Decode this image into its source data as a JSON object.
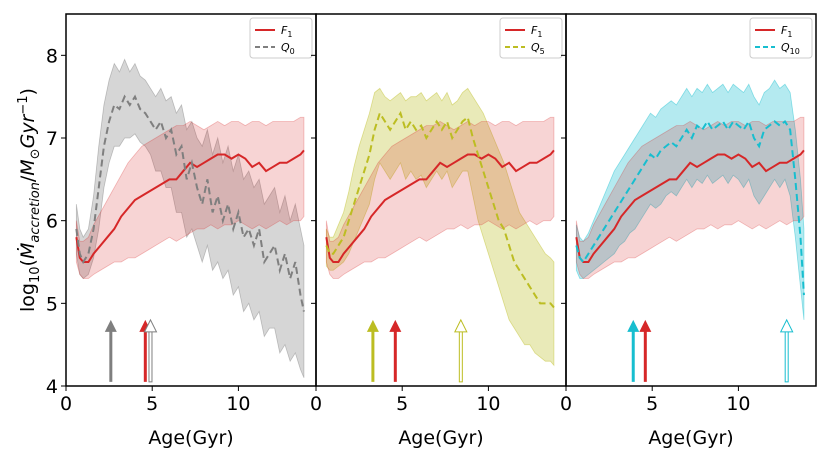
{
  "chart_data": {
    "type": "line",
    "ylabel": "log10(Ṁaccretion/M⊙Gyr⁻¹)",
    "xlim": [
      0,
      14.5
    ],
    "ylim": [
      4,
      8.5
    ],
    "xticks": [
      0,
      5,
      10
    ],
    "yticks": [
      4,
      5,
      6,
      7,
      8
    ],
    "reference": {
      "name": "F1",
      "color": "#d62728",
      "x": [
        0.6,
        0.8,
        1.0,
        1.3,
        1.6,
        2.0,
        2.4,
        2.8,
        3.2,
        3.6,
        4.0,
        4.4,
        4.8,
        5.2,
        5.6,
        6.0,
        6.4,
        6.8,
        7.2,
        7.6,
        8.0,
        8.4,
        8.8,
        9.2,
        9.6,
        10.0,
        10.4,
        10.8,
        11.2,
        11.6,
        12.0,
        12.4,
        12.8,
        13.2,
        13.6,
        13.8
      ],
      "y": [
        5.8,
        5.55,
        5.5,
        5.5,
        5.6,
        5.7,
        5.8,
        5.9,
        6.05,
        6.15,
        6.25,
        6.3,
        6.35,
        6.4,
        6.45,
        6.5,
        6.5,
        6.6,
        6.7,
        6.65,
        6.7,
        6.75,
        6.8,
        6.8,
        6.75,
        6.8,
        6.75,
        6.65,
        6.7,
        6.6,
        6.65,
        6.7,
        6.7,
        6.75,
        6.8,
        6.85
      ],
      "lower": [
        5.5,
        5.35,
        5.3,
        5.3,
        5.35,
        5.4,
        5.45,
        5.5,
        5.5,
        5.55,
        5.55,
        5.6,
        5.65,
        5.7,
        5.75,
        5.8,
        5.75,
        5.8,
        5.85,
        5.9,
        5.9,
        5.95,
        5.9,
        5.95,
        5.95,
        6.0,
        5.95,
        5.9,
        5.95,
        5.9,
        5.95,
        6.0,
        5.95,
        6.0,
        6.0,
        6.05
      ],
      "upper": [
        6.0,
        5.75,
        5.75,
        5.8,
        5.95,
        6.1,
        6.25,
        6.4,
        6.55,
        6.7,
        6.8,
        6.9,
        6.95,
        7.0,
        7.05,
        7.1,
        7.15,
        7.15,
        7.2,
        7.15,
        7.1,
        7.15,
        7.2,
        7.15,
        7.2,
        7.2,
        7.15,
        7.2,
        7.2,
        7.15,
        7.2,
        7.2,
        7.2,
        7.2,
        7.25,
        7.25
      ]
    },
    "panels": [
      {
        "xlabel": "Age(Gyr)",
        "legend": [
          "F1",
          "Q0"
        ],
        "series": {
          "name": "Q0",
          "color": "#7f7f7f",
          "x": [
            0.6,
            0.8,
            1.0,
            1.3,
            1.6,
            1.9,
            2.2,
            2.5,
            2.8,
            3.1,
            3.4,
            3.7,
            4.0,
            4.3,
            4.6,
            4.9,
            5.2,
            5.5,
            5.8,
            6.1,
            6.4,
            6.7,
            7.0,
            7.3,
            7.6,
            7.9,
            8.2,
            8.5,
            8.8,
            9.1,
            9.4,
            9.7,
            10.0,
            10.3,
            10.6,
            10.9,
            11.2,
            11.5,
            11.8,
            12.1,
            12.4,
            12.7,
            13.0,
            13.3,
            13.6,
            13.8
          ],
          "y": [
            5.9,
            5.6,
            5.5,
            5.6,
            5.9,
            6.4,
            6.9,
            7.2,
            7.4,
            7.35,
            7.5,
            7.4,
            7.5,
            7.35,
            7.3,
            7.2,
            7.1,
            7.2,
            7.0,
            7.1,
            6.8,
            6.9,
            6.5,
            6.7,
            6.4,
            6.2,
            6.5,
            6.1,
            6.3,
            6.0,
            6.2,
            5.9,
            6.1,
            5.8,
            5.9,
            5.7,
            5.9,
            5.5,
            5.6,
            5.7,
            5.4,
            5.6,
            5.3,
            5.5,
            5.1,
            4.9
          ],
          "lower": [
            5.6,
            5.35,
            5.3,
            5.35,
            5.55,
            5.9,
            6.4,
            6.7,
            6.9,
            6.9,
            7.0,
            7.0,
            7.05,
            6.95,
            6.9,
            6.8,
            6.6,
            6.6,
            6.4,
            6.4,
            6.1,
            6.1,
            5.8,
            5.9,
            5.7,
            5.5,
            5.7,
            5.4,
            5.5,
            5.3,
            5.4,
            5.1,
            5.2,
            4.9,
            5.0,
            4.8,
            4.9,
            4.6,
            4.7,
            4.7,
            4.4,
            4.5,
            4.3,
            4.4,
            4.2,
            4.1
          ],
          "upper": [
            6.2,
            5.9,
            5.8,
            5.9,
            6.3,
            6.9,
            7.4,
            7.7,
            7.9,
            7.8,
            7.95,
            7.8,
            7.9,
            7.75,
            7.7,
            7.6,
            7.5,
            7.6,
            7.45,
            7.5,
            7.3,
            7.4,
            7.1,
            7.2,
            7.0,
            6.9,
            7.1,
            6.8,
            7.0,
            6.7,
            6.9,
            6.6,
            6.8,
            6.5,
            6.6,
            6.4,
            6.5,
            6.2,
            6.3,
            6.4,
            6.1,
            6.3,
            6.0,
            6.2,
            5.9,
            5.7
          ]
        },
        "arrows": [
          {
            "x": 2.6,
            "color": "#7f7f7f",
            "filled": true
          },
          {
            "x": 4.6,
            "color": "#d62728",
            "filled": true
          },
          {
            "x": 4.9,
            "color": "#7f7f7f",
            "filled": false
          }
        ]
      },
      {
        "xlabel": "Age(Gyr)",
        "legend": [
          "F1",
          "Q5"
        ],
        "series": {
          "name": "Q5",
          "color": "#bcbd22",
          "x": [
            0.6,
            0.8,
            1.0,
            1.3,
            1.6,
            1.9,
            2.2,
            2.5,
            2.8,
            3.1,
            3.4,
            3.7,
            4.0,
            4.3,
            4.6,
            4.9,
            5.2,
            5.5,
            5.8,
            6.1,
            6.4,
            6.7,
            7.0,
            7.3,
            7.6,
            7.9,
            8.2,
            8.5,
            8.8,
            9.1,
            9.4,
            9.7,
            10.0,
            10.3,
            10.6,
            10.9,
            11.2,
            11.5,
            11.8,
            12.1,
            12.4,
            12.7,
            13.0,
            13.3,
            13.6,
            13.8
          ],
          "y": [
            5.7,
            5.6,
            5.6,
            5.7,
            5.8,
            6.0,
            6.2,
            6.4,
            6.6,
            6.8,
            7.1,
            7.3,
            7.2,
            7.1,
            7.2,
            7.3,
            7.1,
            7.2,
            7.1,
            7.15,
            7.0,
            7.1,
            7.2,
            7.1,
            7.2,
            7.0,
            7.1,
            7.2,
            7.25,
            7.0,
            6.8,
            6.6,
            6.4,
            6.2,
            6.0,
            5.9,
            5.7,
            5.5,
            5.4,
            5.3,
            5.2,
            5.1,
            5.0,
            5.0,
            5.0,
            4.95
          ],
          "lower": [
            5.45,
            5.4,
            5.4,
            5.45,
            5.5,
            5.6,
            5.75,
            5.9,
            6.05,
            6.2,
            6.5,
            6.7,
            6.6,
            6.5,
            6.6,
            6.7,
            6.5,
            6.6,
            6.5,
            6.55,
            6.4,
            6.5,
            6.6,
            6.5,
            6.6,
            6.4,
            6.5,
            6.6,
            6.6,
            6.3,
            6.0,
            5.8,
            5.6,
            5.4,
            5.2,
            5.0,
            4.8,
            4.7,
            4.6,
            4.5,
            4.5,
            4.4,
            4.35,
            4.3,
            4.3,
            4.25
          ],
          "upper": [
            5.9,
            5.8,
            5.8,
            5.95,
            6.1,
            6.35,
            6.65,
            6.9,
            7.1,
            7.3,
            7.55,
            7.6,
            7.5,
            7.45,
            7.5,
            7.55,
            7.45,
            7.5,
            7.5,
            7.55,
            7.45,
            7.5,
            7.55,
            7.45,
            7.55,
            7.4,
            7.45,
            7.55,
            7.6,
            7.5,
            7.4,
            7.3,
            7.15,
            7.0,
            6.85,
            6.7,
            6.5,
            6.3,
            6.1,
            6.0,
            5.9,
            5.8,
            5.7,
            5.6,
            5.55,
            5.5
          ]
        },
        "arrows": [
          {
            "x": 3.3,
            "color": "#bcbd22",
            "filled": true
          },
          {
            "x": 4.6,
            "color": "#d62728",
            "filled": true
          },
          {
            "x": 8.4,
            "color": "#bcbd22",
            "filled": false
          }
        ]
      },
      {
        "xlabel": "Age(Gyr)",
        "legend": [
          "F1",
          "Q10"
        ],
        "series": {
          "name": "Q10",
          "color": "#17becf",
          "x": [
            0.6,
            0.8,
            1.0,
            1.3,
            1.6,
            1.9,
            2.2,
            2.5,
            2.8,
            3.1,
            3.4,
            3.7,
            4.0,
            4.3,
            4.6,
            4.9,
            5.2,
            5.5,
            5.8,
            6.1,
            6.4,
            6.7,
            7.0,
            7.3,
            7.6,
            7.9,
            8.2,
            8.5,
            8.8,
            9.1,
            9.4,
            9.7,
            10.0,
            10.3,
            10.6,
            10.9,
            11.2,
            11.5,
            11.8,
            12.1,
            12.4,
            12.7,
            13.0,
            13.3,
            13.6,
            13.8
          ],
          "y": [
            5.7,
            5.55,
            5.5,
            5.6,
            5.7,
            5.8,
            5.9,
            6.0,
            6.1,
            6.2,
            6.3,
            6.4,
            6.5,
            6.6,
            6.7,
            6.8,
            6.75,
            6.85,
            6.9,
            6.95,
            6.9,
            7.0,
            7.1,
            7.0,
            7.15,
            7.1,
            7.2,
            7.1,
            7.15,
            7.2,
            7.1,
            7.2,
            7.15,
            7.1,
            7.2,
            7.0,
            6.9,
            7.1,
            7.15,
            7.2,
            7.15,
            7.2,
            7.1,
            6.5,
            5.8,
            5.1
          ],
          "lower": [
            5.4,
            5.3,
            5.3,
            5.35,
            5.4,
            5.45,
            5.5,
            5.55,
            5.6,
            5.7,
            5.75,
            5.85,
            5.9,
            6.0,
            6.1,
            6.2,
            6.15,
            6.2,
            6.3,
            6.35,
            6.3,
            6.4,
            6.5,
            6.4,
            6.5,
            6.45,
            6.55,
            6.45,
            6.5,
            6.55,
            6.45,
            6.55,
            6.5,
            6.4,
            6.5,
            6.3,
            6.2,
            6.3,
            6.4,
            6.5,
            6.4,
            6.5,
            6.3,
            5.8,
            5.2,
            4.8
          ],
          "upper": [
            5.95,
            5.8,
            5.75,
            5.85,
            6.0,
            6.15,
            6.3,
            6.45,
            6.6,
            6.7,
            6.8,
            6.9,
            7.0,
            7.1,
            7.2,
            7.3,
            7.25,
            7.35,
            7.4,
            7.45,
            7.4,
            7.5,
            7.6,
            7.5,
            7.6,
            7.55,
            7.65,
            7.55,
            7.6,
            7.65,
            7.55,
            7.65,
            7.6,
            7.55,
            7.65,
            7.5,
            7.4,
            7.55,
            7.6,
            7.7,
            7.6,
            7.65,
            7.55,
            7.1,
            6.5,
            5.9
          ]
        },
        "arrows": [
          {
            "x": 3.9,
            "color": "#17becf",
            "filled": true
          },
          {
            "x": 4.6,
            "color": "#d62728",
            "filled": true
          },
          {
            "x": 12.8,
            "color": "#17becf",
            "filled": false
          }
        ]
      }
    ]
  }
}
